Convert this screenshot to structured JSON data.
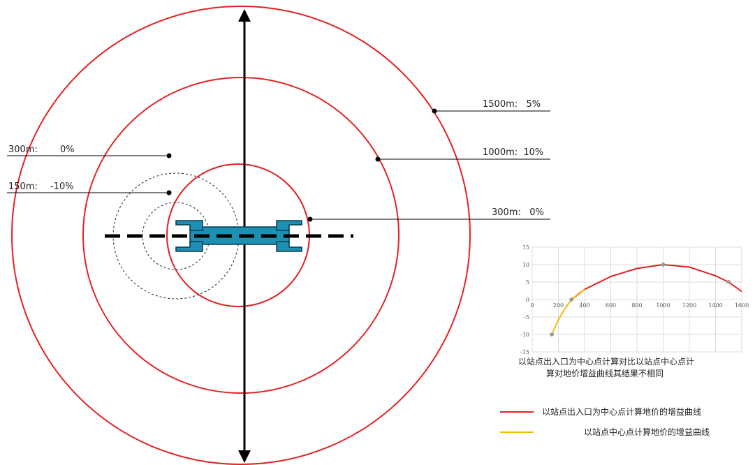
{
  "labels": {
    "left_300": {
      "distance": "300m:",
      "value": "0%"
    },
    "left_150": {
      "distance": "150m:",
      "value": "-10%"
    },
    "right_1500": "1500m:   5%",
    "right_1000": "1000m:  10%",
    "right_300": "300m:   0%"
  },
  "chart_data": {
    "type": "line",
    "xlim": [
      0,
      1600
    ],
    "ylim": [
      -15,
      15
    ],
    "x_ticks": [
      "0",
      "200",
      "400",
      "600",
      "800",
      "1000",
      "1200",
      "1400",
      "1600"
    ],
    "y_ticks": [
      "15",
      "10",
      "5",
      "0",
      "-5",
      "-10",
      "-15"
    ],
    "grid": true,
    "series": [
      {
        "color": "#e02020",
        "points": [
          [
            300,
            0
          ],
          [
            400,
            2.9
          ],
          [
            600,
            6.6
          ],
          [
            800,
            8.9
          ],
          [
            1000,
            10
          ],
          [
            1200,
            9.3
          ],
          [
            1400,
            6.8
          ],
          [
            1500,
            5
          ],
          [
            1600,
            2.3
          ]
        ]
      },
      {
        "color": "#f5b80d",
        "points": [
          [
            150,
            -10
          ],
          [
            200,
            -5.8
          ],
          [
            250,
            -2.6
          ],
          [
            300,
            0
          ],
          [
            350,
            1.6
          ],
          [
            400,
            2.9
          ]
        ]
      }
    ],
    "markers": [
      [
        150,
        -10
      ],
      [
        300,
        0
      ],
      [
        1000,
        10
      ],
      [
        1500,
        5
      ]
    ],
    "caption_lines": [
      "以站点出入口为中心点计算对比以站点中心点计",
      "算对地价增益曲线其结果不相同"
    ]
  },
  "legend": {
    "red": {
      "color": "#e02020",
      "label": "以站点出入口为中心点计算地价的增益曲线"
    },
    "yellow": {
      "color": "#f5b80d",
      "label": "以站点中心点计算地价的增益曲线"
    }
  },
  "colors": {
    "ring": "#e32222",
    "station": "#1d8fb2",
    "axis": "#000000"
  }
}
